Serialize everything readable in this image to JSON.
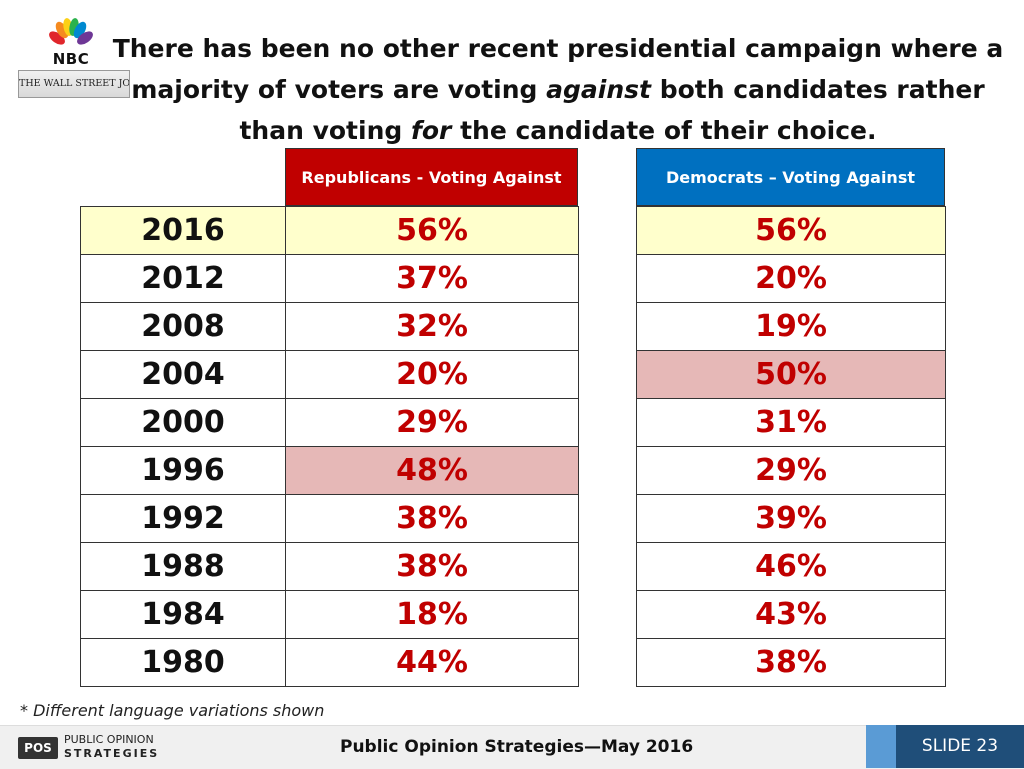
{
  "logos": {
    "nbc_text": "NBC",
    "wsj_text": "THE WALL STREET JOURNAL.",
    "pos_line1": "PUBLIC OPINION",
    "pos_line2": "STRATEGIES",
    "pos_mark": "POS"
  },
  "title": {
    "line1": "There has been no other recent presidential campaign where a",
    "line2_pre": "majority of voters are voting ",
    "line2_em": "against",
    "line2_post": " both candidates rather",
    "line3_pre": "than voting ",
    "line3_em": "for",
    "line3_post": " the candidate of their choice."
  },
  "chart_data": {
    "type": "table",
    "columns": [
      "Republicans -  Voting Against",
      "Democrats – Voting Against"
    ],
    "rows": [
      {
        "year": "2016",
        "rep": "56%",
        "dem": "56%"
      },
      {
        "year": "2012",
        "rep": "37%",
        "dem": "20%"
      },
      {
        "year": "2008",
        "rep": "32%",
        "dem": "19%"
      },
      {
        "year": "2004",
        "rep": "20%",
        "dem": "50%"
      },
      {
        "year": "2000",
        "rep": "29%",
        "dem": "31%"
      },
      {
        "year": "1996",
        "rep": "48%",
        "dem": "29%"
      },
      {
        "year": "1992",
        "rep": "38%",
        "dem": "39%"
      },
      {
        "year": "1988",
        "rep": "38%",
        "dem": "46%"
      },
      {
        "year": "1984",
        "rep": "18%",
        "dem": "43%"
      },
      {
        "year": "1980",
        "rep": "44%",
        "dem": "38%"
      }
    ],
    "highlights": {
      "row_yellow": "2016",
      "rep_pink": "1996",
      "dem_pink": "2004"
    },
    "colors": {
      "rep_header": "#c00000",
      "dem_header": "#0070c0",
      "values": "#c00000",
      "yellow": "#ffffcc",
      "pink": "#e6b8b7"
    }
  },
  "footnote": "* Different language variations shown",
  "footer": {
    "center": "Public Opinion Strategies—May 2016",
    "slide": "SLIDE 23"
  }
}
